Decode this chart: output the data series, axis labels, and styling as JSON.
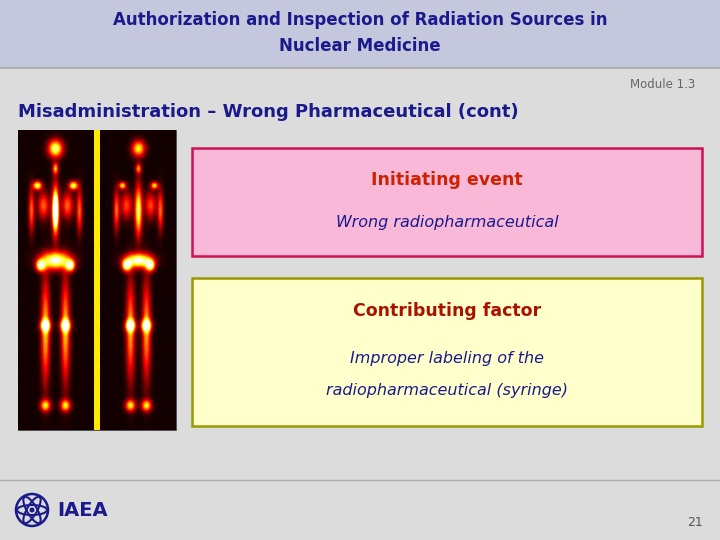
{
  "title_line1": "Authorization and Inspection of Radiation Sources in",
  "title_line2": "Nuclear Medicine",
  "title_bg_color": "#c5c8dc",
  "title_text_color": "#1a1a8c",
  "module_text": "Module 1.3",
  "module_text_color": "#666666",
  "slide_subtitle": "Misadministration – Wrong Pharmaceutical (cont)",
  "subtitle_color": "#1a1a8c",
  "body_bg_color": "#dcdcdc",
  "box1_bg": "#f9b8d8",
  "box1_border": "#cc1155",
  "box1_title": "Initiating event",
  "box1_title_color": "#cc2200",
  "box1_body": "Wrong radiopharmaceutical",
  "box1_body_color": "#1a1a8c",
  "box2_bg": "#ffffcc",
  "box2_border": "#999900",
  "box2_title": "Contributing factor",
  "box2_title_color": "#aa1100",
  "box2_body_line1": "Improper labeling of the",
  "box2_body_line2": "radiopharmaceutical (syringe)",
  "box2_body_color": "#1a1a8c",
  "footer_bg": "#dcdcdc",
  "page_num": "21",
  "page_num_color": "#555555",
  "separator_color": "#aaaaaa",
  "iaea_color": "#1a1a8c"
}
